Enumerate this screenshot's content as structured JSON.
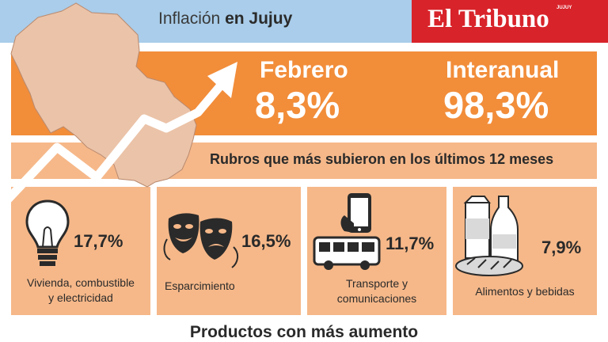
{
  "header": {
    "title_normal": "Inflación ",
    "title_bold": "en Jujuy",
    "brand": "El Tribuno",
    "brand_small": "JUJUY"
  },
  "stats": {
    "monthly_label": "Febrero",
    "monthly_value": "8,3%",
    "yearly_label": "Interanual",
    "yearly_value": "98,3%"
  },
  "rubros_title": "Rubros que más subieron en los últimos 12 meses",
  "categories": [
    {
      "icon": "light-bulb-icon",
      "percent": "17,7%",
      "line1": "Vivienda, combustible",
      "line2": "y electricidad"
    },
    {
      "icon": "theater-masks-icon",
      "percent": "16,5%",
      "line1": "Esparcimiento",
      "line2": ""
    },
    {
      "icon": "bus-phone-icon",
      "percent": "11,7%",
      "line1": "Transporte y",
      "line2": "comunicaciones"
    },
    {
      "icon": "groceries-icon",
      "percent": "7,9%",
      "line1": "Alimentos y bebidas",
      "line2": ""
    }
  ],
  "products_title": "Productos con más aumento",
  "colors": {
    "orange": "#f28d3a",
    "peach": "#f6b889",
    "sky": "#a9cdea",
    "brand_red": "#d8232a",
    "map_fill": "#ebc3a8"
  }
}
